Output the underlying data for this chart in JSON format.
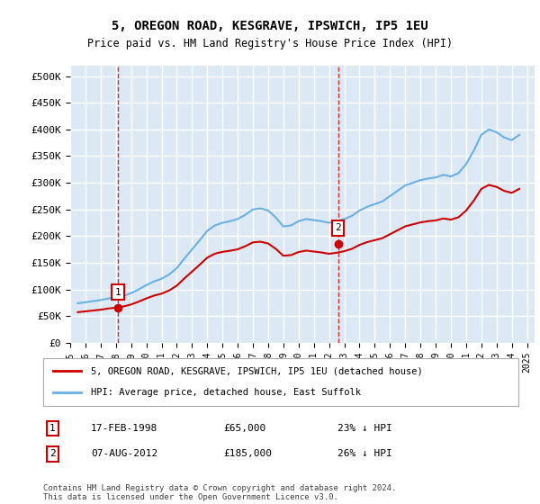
{
  "title": "5, OREGON ROAD, KESGRAVE, IPSWICH, IP5 1EU",
  "subtitle": "Price paid vs. HM Land Registry's House Price Index (HPI)",
  "legend_line1": "5, OREGON ROAD, KESGRAVE, IPSWICH, IP5 1EU (detached house)",
  "legend_line2": "HPI: Average price, detached house, East Suffolk",
  "footer": "Contains HM Land Registry data © Crown copyright and database right 2024.\nThis data is licensed under the Open Government Licence v3.0.",
  "annotation1_label": "1",
  "annotation1_date": "17-FEB-1998",
  "annotation1_price": "£65,000",
  "annotation1_hpi": "23% ↓ HPI",
  "annotation2_label": "2",
  "annotation2_date": "07-AUG-2012",
  "annotation2_price": "£185,000",
  "annotation2_hpi": "26% ↓ HPI",
  "hpi_color": "#6ab0e0",
  "price_color": "#cc0000",
  "background_color": "#dce9f5",
  "plot_bg_color": "#dce9f5",
  "grid_color": "#ffffff",
  "annotation_line_color": "#cc0000",
  "sale1_x": 1998.13,
  "sale1_y": 65000,
  "sale2_x": 2012.6,
  "sale2_y": 185000,
  "ylim_min": 0,
  "ylim_max": 520000,
  "xlim_min": 1995,
  "xlim_max": 2025.5,
  "yticks": [
    0,
    50000,
    100000,
    150000,
    200000,
    250000,
    300000,
    350000,
    400000,
    450000,
    500000
  ],
  "ytick_labels": [
    "£0",
    "£50K",
    "£100K",
    "£150K",
    "£200K",
    "£250K",
    "£300K",
    "£350K",
    "£400K",
    "£450K",
    "£500K"
  ],
  "xticks": [
    1995,
    1996,
    1997,
    1998,
    1999,
    2000,
    2001,
    2002,
    2003,
    2004,
    2005,
    2006,
    2007,
    2008,
    2009,
    2010,
    2011,
    2012,
    2013,
    2014,
    2015,
    2016,
    2017,
    2018,
    2019,
    2020,
    2021,
    2022,
    2023,
    2024,
    2025
  ]
}
